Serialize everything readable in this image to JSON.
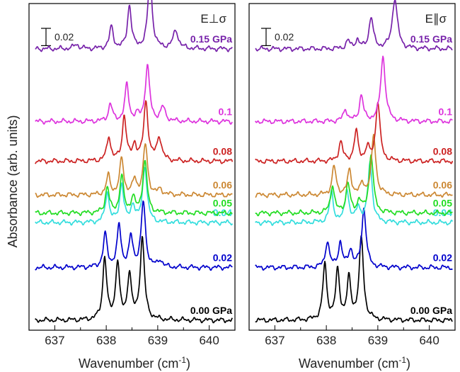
{
  "chart_data": {
    "type": "line",
    "ylabel": "Absorbance (arb. units)",
    "xlabel_main": "Wavenumber (cm",
    "xlabel_sup": "-1",
    "xlabel_close": ")",
    "xlim": [
      636.5,
      640.5
    ],
    "xticks": [
      "637",
      "638",
      "639",
      "640"
    ],
    "panels": [
      {
        "polarization": "E⊥σ",
        "scale_bar_label": "0.02",
        "traces": [
          {
            "label": "0.00 GPa",
            "color": "#000000",
            "baseline": 0.0,
            "peaks": [
              [
                637.97,
                0.072,
                0.045
              ],
              [
                638.22,
                0.066,
                0.045
              ],
              [
                638.45,
                0.052,
                0.045
              ],
              [
                638.7,
                0.094,
                0.05
              ]
            ]
          },
          {
            "label": "0.02",
            "color": "#0000cc",
            "baseline": 0.061,
            "peaks": [
              [
                637.98,
                0.038,
                0.045
              ],
              [
                638.25,
                0.048,
                0.045
              ],
              [
                638.48,
                0.034,
                0.045
              ],
              [
                638.72,
                0.075,
                0.05
              ],
              [
                639.05,
                0.008,
                0.05
              ]
            ]
          },
          {
            "label": "0.04",
            "color": "#33dddd",
            "baseline": 0.113,
            "peaks": [
              [
                638.02,
                0.035,
                0.045
              ],
              [
                638.3,
                0.045,
                0.045
              ],
              [
                638.52,
                0.02,
                0.045
              ],
              [
                638.75,
                0.065,
                0.05
              ]
            ]
          },
          {
            "label": "0.05",
            "color": "#22dd22",
            "baseline": 0.124,
            "peaks": [
              [
                638.02,
                0.03,
                0.045
              ],
              [
                638.3,
                0.042,
                0.045
              ],
              [
                638.52,
                0.017,
                0.045
              ],
              [
                638.75,
                0.06,
                0.05
              ]
            ]
          },
          {
            "label": "0.06",
            "color": "#cc8833",
            "baseline": 0.145,
            "peaks": [
              [
                638.04,
                0.022,
                0.045
              ],
              [
                638.3,
                0.042,
                0.045
              ],
              [
                638.55,
                0.017,
                0.045
              ],
              [
                638.76,
                0.058,
                0.05
              ],
              [
                639.05,
                0.006,
                0.05
              ]
            ]
          },
          {
            "label": "0.08",
            "color": "#cc2222",
            "baseline": 0.184,
            "peaks": [
              [
                638.05,
                0.028,
                0.045
              ],
              [
                638.35,
                0.052,
                0.045
              ],
              [
                638.55,
                0.018,
                0.045
              ],
              [
                638.77,
                0.068,
                0.05
              ],
              [
                639.03,
                0.027,
                0.055
              ]
            ]
          },
          {
            "label": "0.1",
            "color": "#dd33dd",
            "baseline": 0.23,
            "peaks": [
              [
                638.08,
                0.02,
                0.045
              ],
              [
                638.4,
                0.042,
                0.045
              ],
              [
                638.6,
                0.006,
                0.045
              ],
              [
                638.8,
                0.064,
                0.05
              ],
              [
                639.1,
                0.016,
                0.055
              ]
            ]
          },
          {
            "label": "0.15 GPa",
            "color": "#7722aa",
            "baseline": 0.314,
            "peaks": [
              [
                637.42,
                0.005,
                0.06
              ],
              [
                638.1,
                0.025,
                0.045
              ],
              [
                638.45,
                0.05,
                0.045
              ],
              [
                638.85,
                0.082,
                0.05
              ],
              [
                639.35,
                0.021,
                0.06
              ]
            ]
          }
        ]
      },
      {
        "polarization": "E∥σ",
        "scale_bar_label": "0.02",
        "traces": [
          {
            "label": "0.00 GPa",
            "color": "#000000",
            "baseline": 0.0,
            "peaks": [
              [
                637.97,
                0.064,
                0.045
              ],
              [
                638.22,
                0.056,
                0.045
              ],
              [
                638.44,
                0.046,
                0.045
              ],
              [
                638.68,
                0.094,
                0.05
              ]
            ]
          },
          {
            "label": "0.02",
            "color": "#0000cc",
            "baseline": 0.061,
            "peaks": [
              [
                638.02,
                0.03,
                0.045
              ],
              [
                638.27,
                0.028,
                0.045
              ],
              [
                638.47,
                0.02,
                0.045
              ],
              [
                638.73,
                0.068,
                0.05
              ]
            ]
          },
          {
            "label": "0.04",
            "color": "#33dddd",
            "baseline": 0.113,
            "peaks": [
              [
                638.1,
                0.035,
                0.045
              ],
              [
                638.4,
                0.038,
                0.045
              ],
              [
                638.62,
                0.018,
                0.045
              ],
              [
                638.85,
                0.07,
                0.05
              ]
            ]
          },
          {
            "label": "0.05",
            "color": "#22dd22",
            "baseline": 0.124,
            "peaks": [
              [
                638.12,
                0.032,
                0.045
              ],
              [
                638.42,
                0.034,
                0.045
              ],
              [
                638.64,
                0.014,
                0.045
              ],
              [
                638.87,
                0.068,
                0.05
              ]
            ]
          },
          {
            "label": "0.06",
            "color": "#cc8833",
            "baseline": 0.145,
            "peaks": [
              [
                638.15,
                0.033,
                0.045
              ],
              [
                638.45,
                0.028,
                0.045
              ],
              [
                638.7,
                0.012,
                0.045
              ],
              [
                638.92,
                0.068,
                0.05
              ]
            ]
          },
          {
            "label": "0.08",
            "color": "#cc2222",
            "baseline": 0.184,
            "peaks": [
              [
                638.28,
                0.022,
                0.045
              ],
              [
                638.58,
                0.034,
                0.045
              ],
              [
                638.8,
                0.014,
                0.045
              ],
              [
                639.0,
                0.068,
                0.05
              ]
            ]
          },
          {
            "label": "0.1",
            "color": "#dd33dd",
            "baseline": 0.23,
            "peaks": [
              [
                638.37,
                0.014,
                0.045
              ],
              [
                638.68,
                0.03,
                0.045
              ],
              [
                639.1,
                0.075,
                0.055
              ]
            ]
          },
          {
            "label": "0.15 GPa",
            "color": "#7722aa",
            "baseline": 0.314,
            "peaks": [
              [
                638.42,
                0.009,
                0.045
              ],
              [
                638.6,
                0.01,
                0.045
              ],
              [
                638.87,
                0.036,
                0.05
              ],
              [
                639.33,
                0.058,
                0.06
              ]
            ]
          }
        ]
      }
    ]
  }
}
